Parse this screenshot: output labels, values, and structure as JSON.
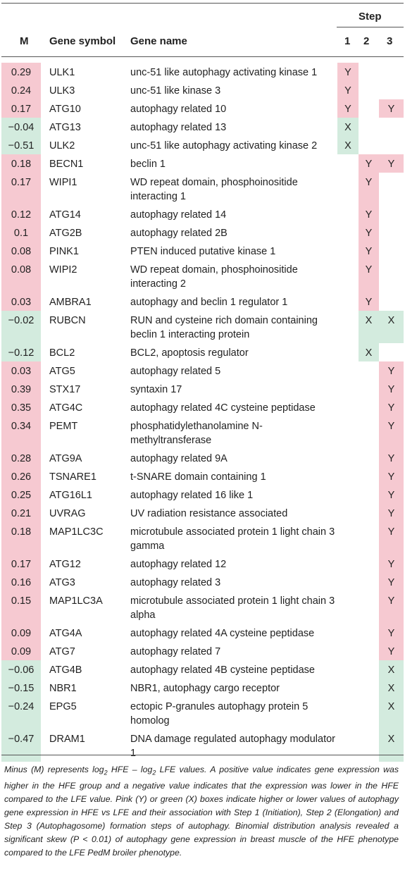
{
  "header": {
    "step_label": "Step",
    "col_m": "M",
    "col_symbol": "Gene symbol",
    "col_name": "Gene name",
    "col_s1": "1",
    "col_s2": "2",
    "col_s3": "3"
  },
  "colors": {
    "pink": "#f6c9d1",
    "green": "#d3ebde"
  },
  "rows": [
    {
      "m": "0.29",
      "symbol": "ULK1",
      "name": "unc-51 like autophagy activating kinase 1",
      "s1": "Y",
      "s2": "",
      "s3": "",
      "mc": "pink",
      "c1": "pink",
      "c2": "",
      "c3": ""
    },
    {
      "m": "0.24",
      "symbol": "ULK3",
      "name": "unc-51 like kinase 3",
      "s1": "Y",
      "s2": "",
      "s3": "",
      "mc": "pink",
      "c1": "pink",
      "c2": "",
      "c3": ""
    },
    {
      "m": "0.17",
      "symbol": "ATG10",
      "name": "autophagy related 10",
      "s1": "Y",
      "s2": "",
      "s3": "Y",
      "mc": "pink",
      "c1": "pink",
      "c2": "",
      "c3": "pink"
    },
    {
      "m": "−0.04",
      "symbol": "ATG13",
      "name": "autophagy related 13",
      "s1": "X",
      "s2": "",
      "s3": "",
      "mc": "green",
      "c1": "green",
      "c2": "",
      "c3": ""
    },
    {
      "m": "−0.51",
      "symbol": "ULK2",
      "name": "unc-51 like autophagy activating kinase 2",
      "s1": "X",
      "s2": "",
      "s3": "",
      "mc": "green",
      "c1": "green",
      "c2": "",
      "c3": ""
    },
    {
      "m": "0.18",
      "symbol": "BECN1",
      "name": "beclin 1",
      "s1": "",
      "s2": "Y",
      "s3": "Y",
      "mc": "pink",
      "c1": "",
      "c2": "pink",
      "c3": "pink"
    },
    {
      "m": "0.17",
      "symbol": "WIPI1",
      "name": "WD repeat domain, phosphoinositide interacting 1",
      "s1": "",
      "s2": "Y",
      "s3": "",
      "mc": "pink",
      "c1": "",
      "c2": "pink",
      "c3": ""
    },
    {
      "m": "0.12",
      "symbol": "ATG14",
      "name": "autophagy related 14",
      "s1": "",
      "s2": "Y",
      "s3": "",
      "mc": "pink",
      "c1": "",
      "c2": "pink",
      "c3": ""
    },
    {
      "m": "0.1",
      "symbol": "ATG2B",
      "name": "autophagy related 2B",
      "s1": "",
      "s2": "Y",
      "s3": "",
      "mc": "pink",
      "c1": "",
      "c2": "pink",
      "c3": ""
    },
    {
      "m": "0.08",
      "symbol": "PINK1",
      "name": "PTEN induced putative kinase 1",
      "s1": "",
      "s2": "Y",
      "s3": "",
      "mc": "pink",
      "c1": "",
      "c2": "pink",
      "c3": ""
    },
    {
      "m": "0.08",
      "symbol": "WIPI2",
      "name": "WD repeat domain, phosphoinositide interacting 2",
      "s1": "",
      "s2": "Y",
      "s3": "",
      "mc": "pink",
      "c1": "",
      "c2": "pink",
      "c3": ""
    },
    {
      "m": "0.03",
      "symbol": "AMBRA1",
      "name": "autophagy and beclin 1 regulator 1",
      "s1": "",
      "s2": "Y",
      "s3": "",
      "mc": "pink",
      "c1": "",
      "c2": "pink",
      "c3": ""
    },
    {
      "m": "−0.02",
      "symbol": "RUBCN",
      "name": "RUN and cysteine rich domain containing beclin 1 interacting protein",
      "s1": "",
      "s2": "X",
      "s3": "X",
      "mc": "green",
      "c1": "",
      "c2": "green",
      "c3": "green"
    },
    {
      "m": "−0.12",
      "symbol": "BCL2",
      "name": "BCL2, apoptosis regulator",
      "s1": "",
      "s2": "X",
      "s3": "",
      "mc": "green",
      "c1": "",
      "c2": "green",
      "c3": ""
    },
    {
      "m": "0.03",
      "symbol": "ATG5",
      "name": "autophagy related 5",
      "s1": "",
      "s2": "",
      "s3": "Y",
      "mc": "pink",
      "c1": "",
      "c2": "",
      "c3": "pink"
    },
    {
      "m": "0.39",
      "symbol": "STX17",
      "name": "syntaxin 17",
      "s1": "",
      "s2": "",
      "s3": "Y",
      "mc": "pink",
      "c1": "",
      "c2": "",
      "c3": "pink"
    },
    {
      "m": "0.35",
      "symbol": "ATG4C",
      "name": "autophagy related 4C cysteine peptidase",
      "s1": "",
      "s2": "",
      "s3": "Y",
      "mc": "pink",
      "c1": "",
      "c2": "",
      "c3": "pink"
    },
    {
      "m": "0.34",
      "symbol": "PEMT",
      "name": "phosphatidylethanolamine N-methyltransferase",
      "s1": "",
      "s2": "",
      "s3": "Y",
      "mc": "pink",
      "c1": "",
      "c2": "",
      "c3": "pink"
    },
    {
      "m": "0.28",
      "symbol": "ATG9A",
      "name": "autophagy related 9A",
      "s1": "",
      "s2": "",
      "s3": "Y",
      "mc": "pink",
      "c1": "",
      "c2": "",
      "c3": "pink"
    },
    {
      "m": "0.26",
      "symbol": "TSNARE1",
      "name": "t-SNARE domain containing 1",
      "s1": "",
      "s2": "",
      "s3": "Y",
      "mc": "pink",
      "c1": "",
      "c2": "",
      "c3": "pink"
    },
    {
      "m": "0.25",
      "symbol": "ATG16L1",
      "name": "autophagy related 16 like 1",
      "s1": "",
      "s2": "",
      "s3": "Y",
      "mc": "pink",
      "c1": "",
      "c2": "",
      "c3": "pink"
    },
    {
      "m": "0.21",
      "symbol": "UVRAG",
      "name": "UV radiation resistance associated",
      "s1": "",
      "s2": "",
      "s3": "Y",
      "mc": "pink",
      "c1": "",
      "c2": "",
      "c3": "pink"
    },
    {
      "m": "0.18",
      "symbol": "MAP1LC3C",
      "name": "microtubule associated protein 1 light chain 3 gamma",
      "s1": "",
      "s2": "",
      "s3": "Y",
      "mc": "pink",
      "c1": "",
      "c2": "",
      "c3": "pink"
    },
    {
      "m": "0.17",
      "symbol": "ATG12",
      "name": "autophagy related 12",
      "s1": "",
      "s2": "",
      "s3": "Y",
      "mc": "pink",
      "c1": "",
      "c2": "",
      "c3": "pink"
    },
    {
      "m": "0.16",
      "symbol": "ATG3",
      "name": "autophagy related 3",
      "s1": "",
      "s2": "",
      "s3": "Y",
      "mc": "pink",
      "c1": "",
      "c2": "",
      "c3": "pink"
    },
    {
      "m": "0.15",
      "symbol": "MAP1LC3A",
      "name": "microtubule associated protein 1 light chain 3 alpha",
      "s1": "",
      "s2": "",
      "s3": "Y",
      "mc": "pink",
      "c1": "",
      "c2": "",
      "c3": "pink"
    },
    {
      "m": "0.09",
      "symbol": "ATG4A",
      "name": "autophagy related 4A cysteine peptidase",
      "s1": "",
      "s2": "",
      "s3": "Y",
      "mc": "pink",
      "c1": "",
      "c2": "",
      "c3": "pink"
    },
    {
      "m": "0.09",
      "symbol": "ATG7",
      "name": "autophagy related 7",
      "s1": "",
      "s2": "",
      "s3": "Y",
      "mc": "pink",
      "c1": "",
      "c2": "",
      "c3": "pink"
    },
    {
      "m": "−0.06",
      "symbol": "ATG4B",
      "name": "autophagy related 4B cysteine peptidase",
      "s1": "",
      "s2": "",
      "s3": "X",
      "mc": "green",
      "c1": "",
      "c2": "",
      "c3": "green"
    },
    {
      "m": "−0.15",
      "symbol": "NBR1",
      "name": "NBR1, autophagy cargo receptor",
      "s1": "",
      "s2": "",
      "s3": "X",
      "mc": "green",
      "c1": "",
      "c2": "",
      "c3": "green"
    },
    {
      "m": "−0.24",
      "symbol": "EPG5",
      "name": "ectopic P-granules autophagy protein 5 homolog",
      "s1": "",
      "s2": "",
      "s3": "X",
      "mc": "green",
      "c1": "",
      "c2": "",
      "c3": "green"
    },
    {
      "m": "−0.47",
      "symbol": "DRAM1",
      "name": "DNA damage regulated autophagy modulator 1",
      "s1": "",
      "s2": "",
      "s3": "X",
      "mc": "green",
      "c1": "",
      "c2": "",
      "c3": "green"
    }
  ],
  "footnote": {
    "p1": "Minus (M) represents log",
    "sub1": "2",
    "p2": " HFE – log",
    "sub2": "2",
    "p3": " LFE values. A positive value indicates gene expression was higher in the HFE group and a negative value indicates that the expression was lower in the HFE compared to the LFE value. Pink (Y) or green (X) boxes indicate higher or lower values of autophagy gene expression in HFE vs LFE and their association with Step 1 (Initiation), Step 2 (Elongation) and Step 3 (Autophagosome) formation steps of autophagy. Binomial distribution analysis revealed a significant skew (P < 0.01) of autophagy gene expression in breast muscle of the HFE phenotype compared to the LFE PedM broiler phenotype."
  }
}
